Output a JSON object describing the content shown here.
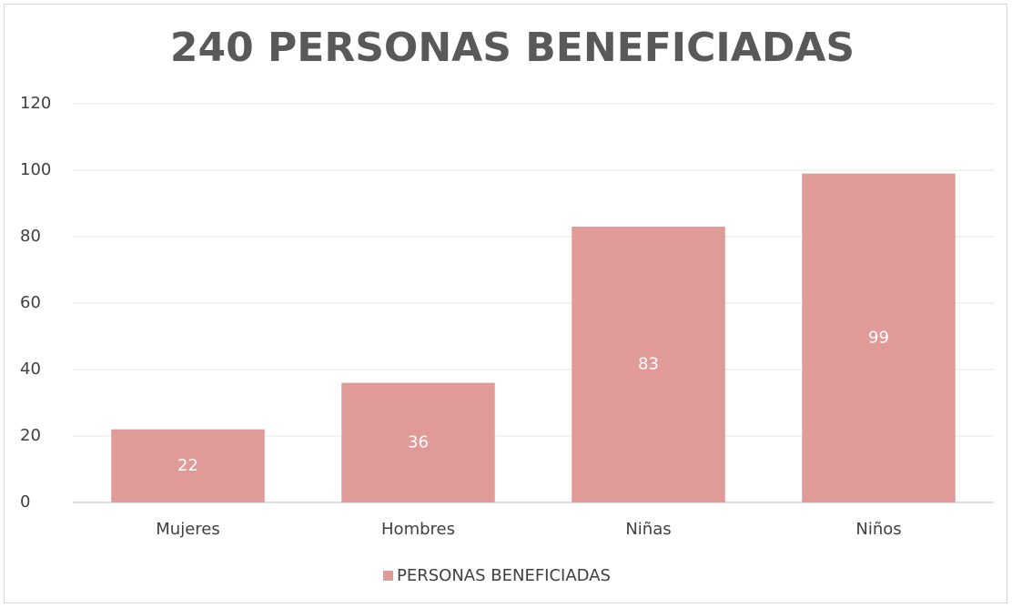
{
  "chart_data": {
    "type": "bar",
    "title": "240 PERSONAS BENEFICIADAS",
    "categories": [
      "Mujeres",
      "Hombres",
      "Niñas",
      "Niños"
    ],
    "series": [
      {
        "name": "PERSONAS BENEFICIADAS",
        "color": "#e09a97",
        "values": [
          22,
          36,
          83,
          99
        ]
      }
    ],
    "ylim": [
      0,
      120
    ],
    "yticks": [
      0,
      20,
      40,
      60,
      80,
      100,
      120
    ],
    "grid": true,
    "legend": "bottom",
    "data_labels": true
  }
}
